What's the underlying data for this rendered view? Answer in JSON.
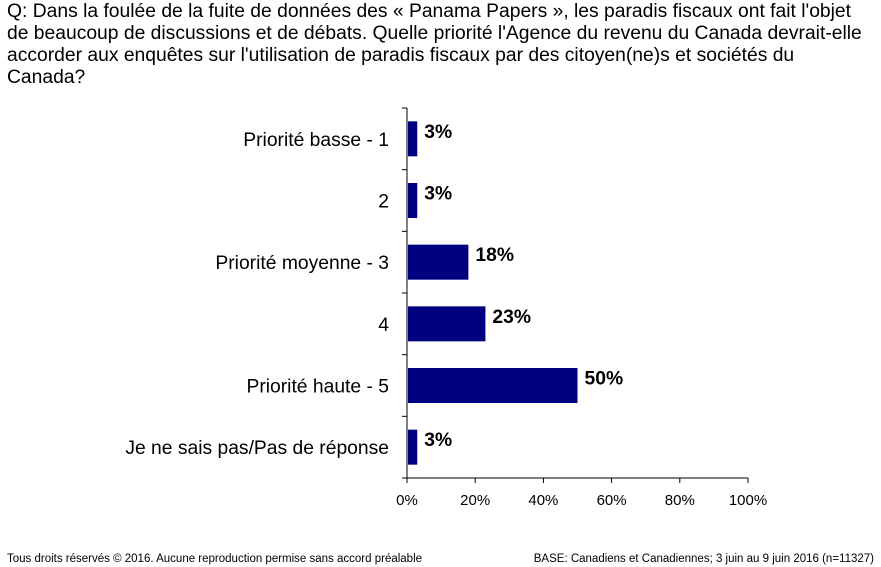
{
  "question": "Q: Dans la foulée de la fuite de données des « Panama Papers », les paradis fiscaux ont fait l'objet de beaucoup de discussions et de débats. Quelle priorité l'Agence du revenu du Canada devrait-elle accorder aux enquêtes sur l'utilisation de paradis fiscaux par des citoyen(ne)s et sociétés du Canada?",
  "chart_data": {
    "type": "bar",
    "orientation": "horizontal",
    "categories": [
      "Priorité basse - 1",
      "2",
      "Priorité moyenne - 3",
      "4",
      "Priorité haute - 5",
      "Je ne sais pas/Pas de réponse"
    ],
    "values": [
      3,
      3,
      18,
      23,
      50,
      3
    ],
    "data_labels": [
      "3%",
      "3%",
      "18%",
      "23%",
      "50%",
      "3%"
    ],
    "xlim": [
      0,
      100
    ],
    "xticks": [
      0,
      20,
      40,
      60,
      80,
      100
    ],
    "xtick_labels": [
      "0%",
      "20%",
      "40%",
      "60%",
      "80%",
      "100%"
    ],
    "bar_color": "#000080",
    "grid": false,
    "legend": "none"
  },
  "footer": {
    "left": "Tous droits réservés © 2016. Aucune reproduction permise sans accord préalable",
    "right": "BASE: Canadiens et Canadiennes; 3 juin au 9 juin 2016 (n=11327)"
  }
}
